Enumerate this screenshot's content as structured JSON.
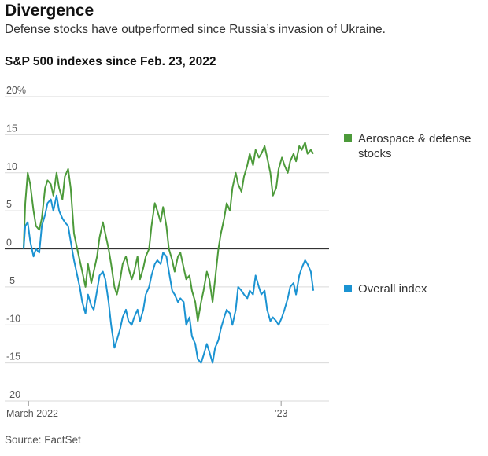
{
  "header": {
    "title": "Divergence",
    "subtitle": "Defense stocks have outperformed since Russia’s invasion of Ukraine."
  },
  "source": "Source: FactSet",
  "chart_data": {
    "type": "line",
    "title": "S&P 500 indexes since Feb. 23, 2022",
    "ylim": [
      -20,
      20
    ],
    "yticks": [
      20,
      15,
      10,
      5,
      0,
      -5,
      -10,
      -15,
      -20
    ],
    "ytick_labels": [
      "20%",
      "15",
      "10",
      "5",
      "0",
      "-5",
      "-10",
      "-15",
      "-20"
    ],
    "x_tick_labels": [
      {
        "label": "March 2022",
        "date": "2022-03-01"
      },
      {
        "label": "’23",
        "date": "2023-01-01"
      }
    ],
    "xlim": [
      "2022-02-23",
      "2023-02-28"
    ],
    "grid": true,
    "legend_placement": "right",
    "series": [
      {
        "name": "Aerospace & defense stocks",
        "color": "#4c9a3a",
        "points": [
          [
            "2022-02-23",
            0
          ],
          [
            "2022-02-25",
            6
          ],
          [
            "2022-02-28",
            10
          ],
          [
            "2022-03-03",
            8.5
          ],
          [
            "2022-03-07",
            5
          ],
          [
            "2022-03-10",
            3
          ],
          [
            "2022-03-14",
            2.5
          ],
          [
            "2022-03-17",
            4
          ],
          [
            "2022-03-21",
            8
          ],
          [
            "2022-03-24",
            9
          ],
          [
            "2022-03-28",
            8.5
          ],
          [
            "2022-03-31",
            7
          ],
          [
            "2022-04-04",
            10
          ],
          [
            "2022-04-07",
            8
          ],
          [
            "2022-04-11",
            6.5
          ],
          [
            "2022-04-14",
            9.5
          ],
          [
            "2022-04-18",
            10.5
          ],
          [
            "2022-04-21",
            8
          ],
          [
            "2022-04-25",
            2
          ],
          [
            "2022-04-28",
            0.5
          ],
          [
            "2022-05-02",
            -1.5
          ],
          [
            "2022-05-05",
            -3
          ],
          [
            "2022-05-09",
            -5
          ],
          [
            "2022-05-12",
            -2
          ],
          [
            "2022-05-16",
            -4.5
          ],
          [
            "2022-05-19",
            -3
          ],
          [
            "2022-05-23",
            -1
          ],
          [
            "2022-05-26",
            1.5
          ],
          [
            "2022-05-30",
            3.5
          ],
          [
            "2022-06-02",
            2
          ],
          [
            "2022-06-06",
            0
          ],
          [
            "2022-06-09",
            -2
          ],
          [
            "2022-06-13",
            -5
          ],
          [
            "2022-06-16",
            -6
          ],
          [
            "2022-06-20",
            -4
          ],
          [
            "2022-06-23",
            -2
          ],
          [
            "2022-06-27",
            -1
          ],
          [
            "2022-06-30",
            -2.5
          ],
          [
            "2022-07-04",
            -4
          ],
          [
            "2022-07-07",
            -3
          ],
          [
            "2022-07-11",
            -1
          ],
          [
            "2022-07-14",
            -4
          ],
          [
            "2022-07-18",
            -2.5
          ],
          [
            "2022-07-21",
            -1
          ],
          [
            "2022-07-25",
            0
          ],
          [
            "2022-07-28",
            3
          ],
          [
            "2022-08-01",
            6
          ],
          [
            "2022-08-04",
            5
          ],
          [
            "2022-08-08",
            3.5
          ],
          [
            "2022-08-11",
            5.5
          ],
          [
            "2022-08-15",
            3
          ],
          [
            "2022-08-18",
            0
          ],
          [
            "2022-08-22",
            -1.5
          ],
          [
            "2022-08-25",
            -3
          ],
          [
            "2022-08-29",
            -1
          ],
          [
            "2022-09-01",
            -0.5
          ],
          [
            "2022-09-05",
            -2.5
          ],
          [
            "2022-09-08",
            -4
          ],
          [
            "2022-09-12",
            -3.5
          ],
          [
            "2022-09-15",
            -5.5
          ],
          [
            "2022-09-19",
            -7
          ],
          [
            "2022-09-22",
            -9.5
          ],
          [
            "2022-09-26",
            -7
          ],
          [
            "2022-09-29",
            -5.5
          ],
          [
            "2022-10-03",
            -3
          ],
          [
            "2022-10-06",
            -4
          ],
          [
            "2022-10-10",
            -7
          ],
          [
            "2022-10-13",
            -4
          ],
          [
            "2022-10-17",
            0
          ],
          [
            "2022-10-20",
            2
          ],
          [
            "2022-10-24",
            4
          ],
          [
            "2022-10-27",
            6
          ],
          [
            "2022-10-31",
            5
          ],
          [
            "2022-11-03",
            8
          ],
          [
            "2022-11-07",
            10
          ],
          [
            "2022-11-10",
            8.5
          ],
          [
            "2022-11-14",
            7.5
          ],
          [
            "2022-11-17",
            9.5
          ],
          [
            "2022-11-21",
            11
          ],
          [
            "2022-11-24",
            12.5
          ],
          [
            "2022-11-28",
            11
          ],
          [
            "2022-12-01",
            13
          ],
          [
            "2022-12-05",
            12
          ],
          [
            "2022-12-08",
            12.5
          ],
          [
            "2022-12-12",
            13.5
          ],
          [
            "2022-12-15",
            12
          ],
          [
            "2022-12-19",
            10
          ],
          [
            "2022-12-22",
            7
          ],
          [
            "2022-12-26",
            8
          ],
          [
            "2022-12-29",
            10.5
          ],
          [
            "2023-01-02",
            12
          ],
          [
            "2023-01-05",
            11
          ],
          [
            "2023-01-09",
            10
          ],
          [
            "2023-01-12",
            11.5
          ],
          [
            "2023-01-16",
            12.5
          ],
          [
            "2023-01-19",
            11.5
          ],
          [
            "2023-01-23",
            13.5
          ],
          [
            "2023-01-26",
            13
          ],
          [
            "2023-01-30",
            14
          ],
          [
            "2023-02-02",
            12.5
          ],
          [
            "2023-02-06",
            13
          ],
          [
            "2023-02-09",
            12.5
          ]
        ]
      },
      {
        "name": "Overall index",
        "color": "#1b93d2",
        "points": [
          [
            "2022-02-23",
            0
          ],
          [
            "2022-02-25",
            3
          ],
          [
            "2022-02-28",
            3.5
          ],
          [
            "2022-03-03",
            1
          ],
          [
            "2022-03-07",
            -1
          ],
          [
            "2022-03-10",
            0
          ],
          [
            "2022-03-14",
            -0.5
          ],
          [
            "2022-03-17",
            3
          ],
          [
            "2022-03-21",
            4.5
          ],
          [
            "2022-03-24",
            6
          ],
          [
            "2022-03-28",
            6.5
          ],
          [
            "2022-03-31",
            5
          ],
          [
            "2022-04-04",
            7
          ],
          [
            "2022-04-07",
            5
          ],
          [
            "2022-04-11",
            4
          ],
          [
            "2022-04-14",
            3.5
          ],
          [
            "2022-04-18",
            3
          ],
          [
            "2022-04-21",
            1
          ],
          [
            "2022-04-25",
            -1.5
          ],
          [
            "2022-04-28",
            -3
          ],
          [
            "2022-05-02",
            -5
          ],
          [
            "2022-05-05",
            -7
          ],
          [
            "2022-05-09",
            -8.5
          ],
          [
            "2022-05-12",
            -6
          ],
          [
            "2022-05-16",
            -7.5
          ],
          [
            "2022-05-19",
            -8
          ],
          [
            "2022-05-23",
            -5.5
          ],
          [
            "2022-05-26",
            -3.5
          ],
          [
            "2022-05-30",
            -3
          ],
          [
            "2022-06-02",
            -4
          ],
          [
            "2022-06-06",
            -7
          ],
          [
            "2022-06-09",
            -10
          ],
          [
            "2022-06-13",
            -13
          ],
          [
            "2022-06-16",
            -12
          ],
          [
            "2022-06-20",
            -10.5
          ],
          [
            "2022-06-23",
            -9
          ],
          [
            "2022-06-27",
            -8
          ],
          [
            "2022-06-30",
            -9.5
          ],
          [
            "2022-07-04",
            -10
          ],
          [
            "2022-07-07",
            -9
          ],
          [
            "2022-07-11",
            -8
          ],
          [
            "2022-07-14",
            -9.5
          ],
          [
            "2022-07-18",
            -8
          ],
          [
            "2022-07-21",
            -6
          ],
          [
            "2022-07-25",
            -5
          ],
          [
            "2022-07-28",
            -3.5
          ],
          [
            "2022-08-01",
            -2
          ],
          [
            "2022-08-04",
            -1.5
          ],
          [
            "2022-08-08",
            -2
          ],
          [
            "2022-08-11",
            -0.5
          ],
          [
            "2022-08-15",
            -1
          ],
          [
            "2022-08-18",
            -3
          ],
          [
            "2022-08-22",
            -5.5
          ],
          [
            "2022-08-25",
            -6
          ],
          [
            "2022-08-29",
            -7
          ],
          [
            "2022-09-01",
            -6.5
          ],
          [
            "2022-09-05",
            -7
          ],
          [
            "2022-09-08",
            -10
          ],
          [
            "2022-09-12",
            -9
          ],
          [
            "2022-09-15",
            -11.5
          ],
          [
            "2022-09-19",
            -12.5
          ],
          [
            "2022-09-22",
            -14.5
          ],
          [
            "2022-09-26",
            -15
          ],
          [
            "2022-09-29",
            -14
          ],
          [
            "2022-10-03",
            -12.5
          ],
          [
            "2022-10-06",
            -13.5
          ],
          [
            "2022-10-10",
            -15
          ],
          [
            "2022-10-13",
            -13
          ],
          [
            "2022-10-17",
            -12
          ],
          [
            "2022-10-20",
            -10.5
          ],
          [
            "2022-10-24",
            -9
          ],
          [
            "2022-10-27",
            -8
          ],
          [
            "2022-10-31",
            -8.5
          ],
          [
            "2022-11-03",
            -10
          ],
          [
            "2022-11-07",
            -8
          ],
          [
            "2022-11-10",
            -5
          ],
          [
            "2022-11-14",
            -5.5
          ],
          [
            "2022-11-17",
            -6
          ],
          [
            "2022-11-21",
            -6.5
          ],
          [
            "2022-11-24",
            -5.5
          ],
          [
            "2022-11-28",
            -6
          ],
          [
            "2022-12-01",
            -3.5
          ],
          [
            "2022-12-05",
            -5
          ],
          [
            "2022-12-08",
            -6
          ],
          [
            "2022-12-12",
            -5.5
          ],
          [
            "2022-12-15",
            -8
          ],
          [
            "2022-12-19",
            -9.5
          ],
          [
            "2022-12-22",
            -9
          ],
          [
            "2022-12-26",
            -9.5
          ],
          [
            "2022-12-29",
            -10
          ],
          [
            "2023-01-02",
            -9
          ],
          [
            "2023-01-05",
            -8
          ],
          [
            "2023-01-09",
            -6.5
          ],
          [
            "2023-01-12",
            -5
          ],
          [
            "2023-01-16",
            -4.5
          ],
          [
            "2023-01-19",
            -6
          ],
          [
            "2023-01-23",
            -3.5
          ],
          [
            "2023-01-26",
            -2.5
          ],
          [
            "2023-01-30",
            -1.5
          ],
          [
            "2023-02-02",
            -2
          ],
          [
            "2023-02-06",
            -3
          ],
          [
            "2023-02-09",
            -5.5
          ]
        ]
      }
    ]
  }
}
